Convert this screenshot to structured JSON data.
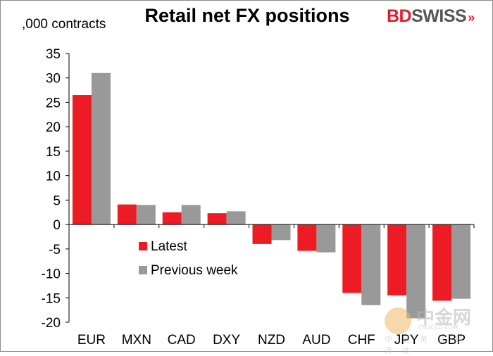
{
  "header": {
    "title": "Retail net FX positions",
    "unit_label": ",000 contracts"
  },
  "brand": {
    "logo_text_red": "BD",
    "logo_text_gray": "SWISS",
    "logo_mark": "»",
    "colors": {
      "red": "#e31b2a",
      "gray": "#555555"
    }
  },
  "watermark": {
    "title": "中金网",
    "domain": "CNGOLD.COM",
    "subtitle": "中国黄金经济体"
  },
  "chart_data": {
    "type": "bar",
    "categories": [
      "EUR",
      "MXN",
      "CAD",
      "DXY",
      "NZD",
      "AUD",
      "CHF",
      "JPY",
      "GBP"
    ],
    "series": [
      {
        "name": "Latest",
        "color": "#ed1c24",
        "values": [
          26.5,
          4.1,
          2.5,
          2.3,
          -4.0,
          -5.4,
          -14.0,
          -14.5,
          -15.6
        ]
      },
      {
        "name": "Previous week",
        "color": "#999999",
        "values": [
          31.0,
          4.0,
          4.0,
          2.7,
          -3.2,
          -5.7,
          -16.5,
          -19.2,
          -15.2
        ]
      }
    ],
    "ylabel": ",000 contracts",
    "ylim": [
      -20,
      35
    ],
    "yticks": [
      35,
      30,
      25,
      20,
      15,
      10,
      5,
      0,
      -5,
      -10,
      -15,
      -20
    ],
    "grid": false,
    "legend_position": "center-left"
  }
}
